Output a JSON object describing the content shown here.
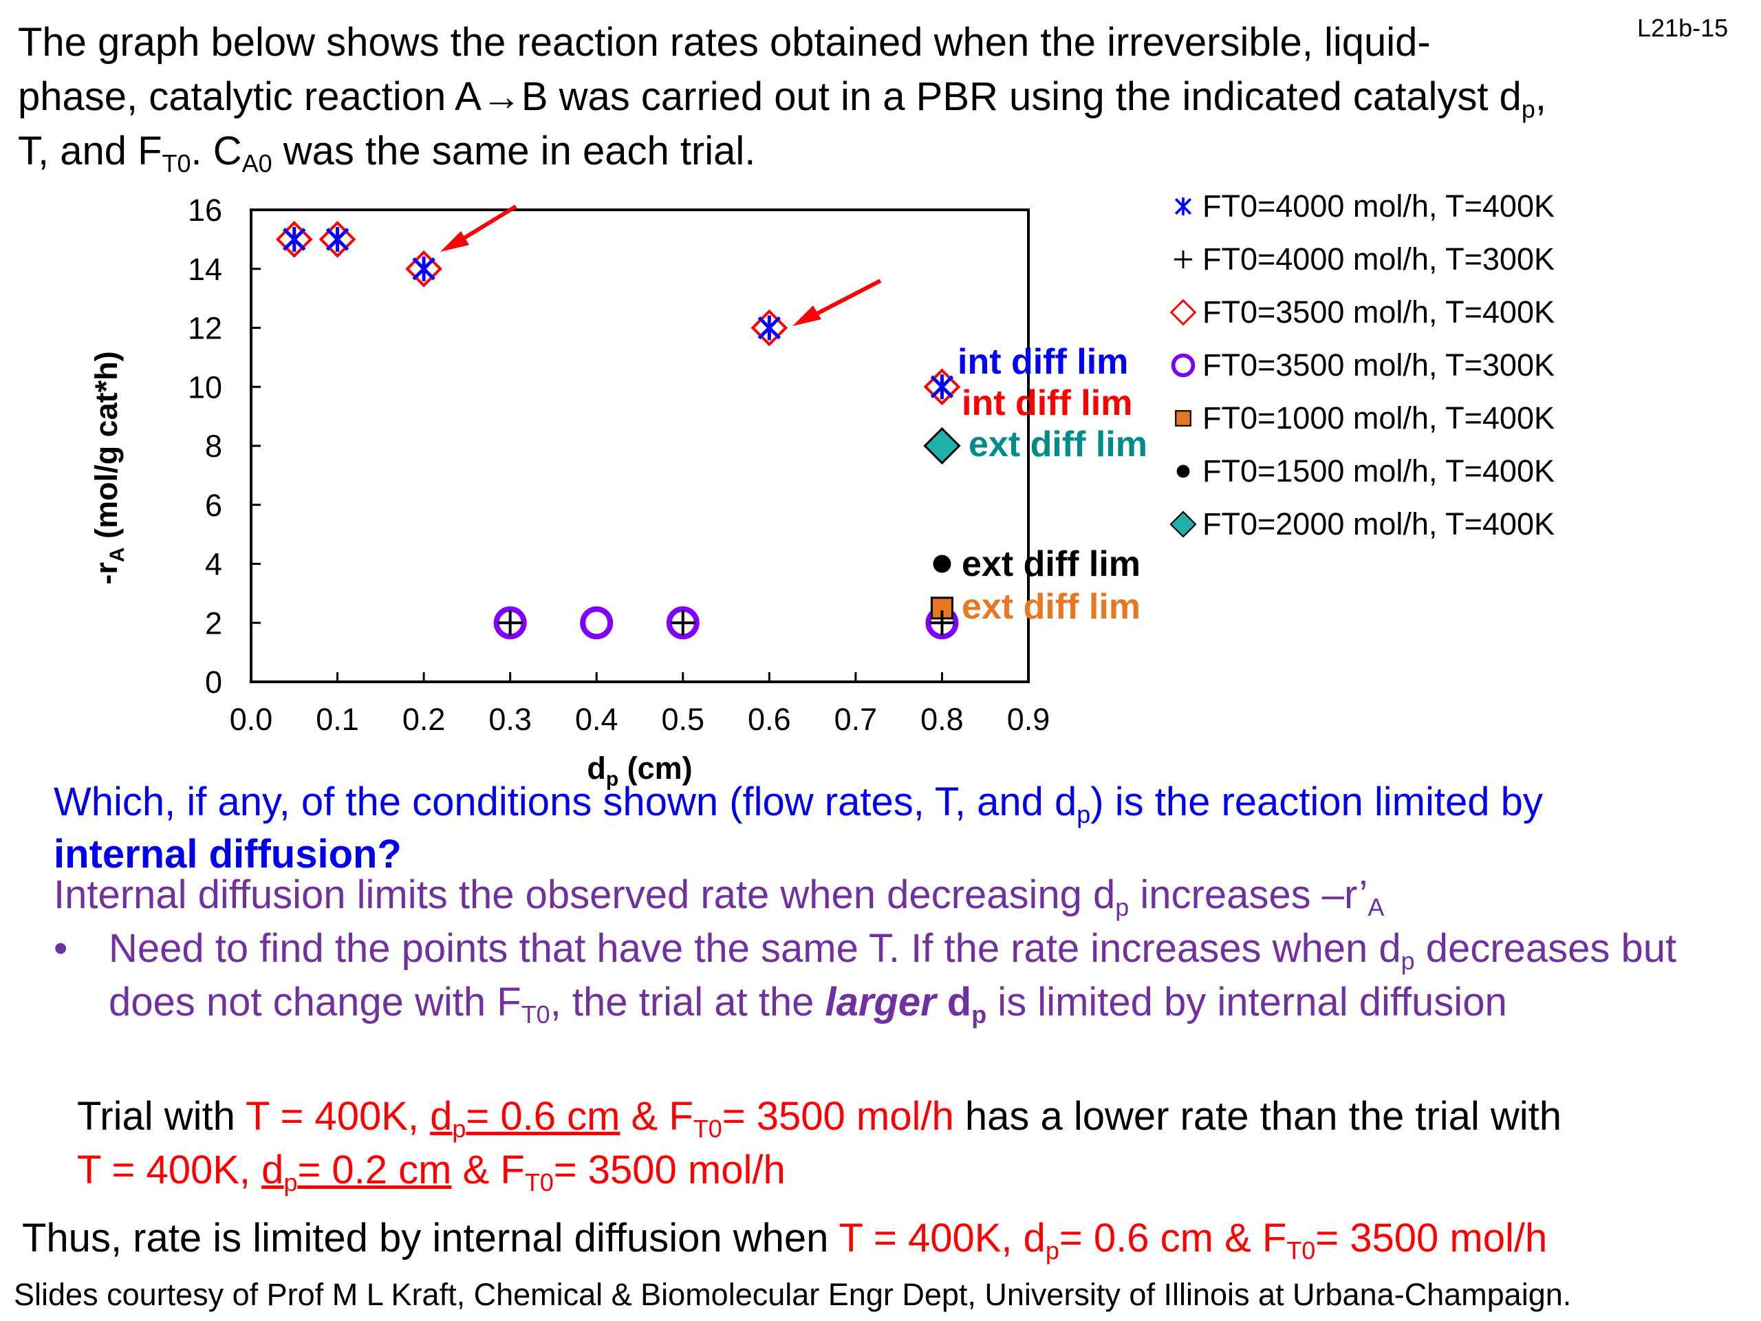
{
  "slide_id": "L21b-15",
  "intro": {
    "l1": "The graph below shows the reaction rates obtained when the irreversible, liquid-",
    "l2a": "phase, catalytic reaction A→B was carried out in a PBR using the indicated catalyst d",
    "l2sub": "p",
    "l2b": ",",
    "l3a": "T, and F",
    "l3sub1": "T0",
    "l3b": ". C",
    "l3sub2": "A0",
    "l3c": " was the same in each trial."
  },
  "chart_data": {
    "type": "scatter",
    "xlabel": "d",
    "xlabel_sub": "p",
    "xlabel_unit": " (cm)",
    "ylabel": "-r",
    "ylabel_sub": "A",
    "ylabel_unit": " (mol/g cat*h)",
    "xlim": [
      0.0,
      0.9
    ],
    "ylim": [
      0,
      16
    ],
    "xticks": [
      "0.0",
      "0.1",
      "0.2",
      "0.3",
      "0.4",
      "0.5",
      "0.6",
      "0.7",
      "0.8",
      "0.9"
    ],
    "yticks": [
      "0",
      "2",
      "4",
      "6",
      "8",
      "10",
      "12",
      "14",
      "16"
    ],
    "series": [
      {
        "name": "FT0=4000 mol/h, T=400K",
        "marker": "star",
        "color": "#0000ff",
        "x": [
          0.05,
          0.1,
          0.2,
          0.6,
          0.8
        ],
        "y": [
          15,
          15,
          14,
          12,
          10
        ]
      },
      {
        "name": "FT0=4000 mol/h, T=300K",
        "marker": "plus",
        "color": "#000000",
        "x": [
          0.3,
          0.5,
          0.8
        ],
        "y": [
          2,
          2,
          2
        ]
      },
      {
        "name": "FT0=3500 mol/h, T=400K",
        "marker": "diamond-open",
        "color": "#ff0000",
        "x": [
          0.05,
          0.1,
          0.2,
          0.6,
          0.8
        ],
        "y": [
          15,
          15,
          14,
          12,
          10
        ]
      },
      {
        "name": "FT0=3500 mol/h, T=300K",
        "marker": "circle-open",
        "color": "#8000ff",
        "x": [
          0.3,
          0.4,
          0.5,
          0.8
        ],
        "y": [
          2,
          2,
          2,
          2
        ]
      },
      {
        "name": "FT0=1000 mol/h, T=400K",
        "marker": "square",
        "color": "#e87722",
        "x": [
          0.8
        ],
        "y": [
          2.5
        ]
      },
      {
        "name": "FT0=1500 mol/h, T=400K",
        "marker": "dot",
        "color": "#000000",
        "x": [
          0.8
        ],
        "y": [
          4
        ]
      },
      {
        "name": "FT0=2000 mol/h, T=400K",
        "marker": "diamond",
        "color": "#20b2aa",
        "x": [
          0.8
        ],
        "y": [
          8
        ]
      }
    ],
    "annotations": [
      {
        "text": "int diff lim",
        "color": "#0000ff"
      },
      {
        "text": "int diff lim",
        "color": "#ff0000"
      },
      {
        "text": "ext diff lim",
        "color": "#008b8b"
      },
      {
        "text": "ext diff lim",
        "color": "#000000"
      },
      {
        "text": "ext diff lim",
        "color": "#e87722"
      }
    ]
  },
  "question": {
    "a": "Which, if any, of the conditions shown (flow rates, T, and d",
    "sub": "p",
    "b": ") is the reaction limited by",
    "bold": "internal diffusion?"
  },
  "explanation": {
    "a": "Internal diffusion limits the observed rate when decreasing d",
    "sub1": "p",
    "b": " increases –r’",
    "sub2": "A"
  },
  "bullet": {
    "dot": "•",
    "a": "Need to find the points that have the same T. If the rate increases when d",
    "sub1": "p",
    "b": " decreases but does not change with F",
    "sub2": "T0",
    "c": ", the trial at the ",
    "em": "larger",
    "d": " d",
    "sub3": "p",
    "e": " is limited by internal diffusion"
  },
  "trial": {
    "a": "Trial with ",
    "r1": "T = 400K, ",
    "u1": "d",
    "u1sub": "p",
    "u1b": "= 0.6 cm",
    "r2": " & F",
    "r2sub": "T0",
    "r2b": "= 3500 mol/h",
    "b": " has a lower rate than the trial with",
    "r3": "T = 400K, ",
    "u2": "d",
    "u2sub": "p",
    "u2b": "= 0.2 cm",
    "r4": " & F",
    "r4sub": "T0",
    "r4b": "= 3500 mol/h"
  },
  "conclusion": {
    "a": "Thus, rate is limited by internal diffusion when ",
    "r": "T = 400K, d",
    "rsub": "p",
    "r2": "= 0.6 cm & F",
    "rsub2": "T0",
    "r3": "= 3500 mol/h"
  },
  "credit": "Slides courtesy of Prof M L Kraft, Chemical & Biomolecular Engr Dept, University of Illinois at Urbana-Champaign."
}
